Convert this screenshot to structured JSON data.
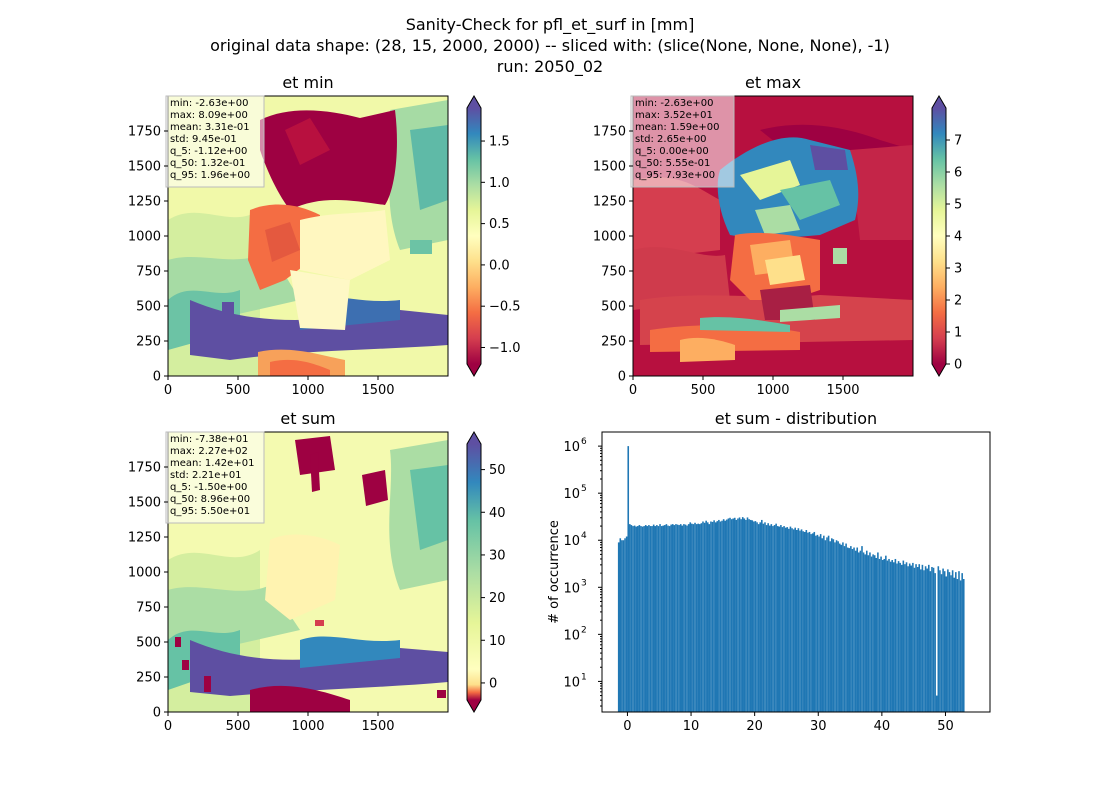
{
  "figure": {
    "suptitle_lines": [
      "Sanity-Check for pfl_et_surf in [mm]",
      "original data shape: (28, 15, 2000, 2000) -- sliced with: (slice(None, None, None), -1)",
      "run: 2050_02"
    ]
  },
  "chart_data": [
    {
      "type": "heatmap",
      "title": "et min",
      "xlabel": "",
      "ylabel": "",
      "xlim": [
        0,
        2000
      ],
      "ylim": [
        0,
        2000
      ],
      "xticks": [
        0,
        500,
        1000,
        1500
      ],
      "yticks": [
        0,
        250,
        500,
        750,
        1000,
        1250,
        1500,
        1750
      ],
      "colormap": "Spectral",
      "colorbar": {
        "vmin": -1.2,
        "vmax": 1.9,
        "ticks": [
          -1.0,
          -0.5,
          0.0,
          0.5,
          1.0,
          1.5
        ],
        "tick_labels": [
          "−1.0",
          "−0.5",
          "0.0",
          "0.5",
          "1.0",
          "1.5"
        ]
      },
      "stats": [
        "min: -2.63e+00",
        "max: 8.09e+00",
        "mean: 3.31e-01",
        "std: 9.45e-01",
        "q_5: -1.12e+00",
        "q_50: 1.32e-01",
        "q_95: 1.96e+00"
      ]
    },
    {
      "type": "heatmap",
      "title": "et max",
      "xlabel": "",
      "ylabel": "",
      "xlim": [
        0,
        2000
      ],
      "ylim": [
        0,
        2000
      ],
      "xticks": [
        0,
        500,
        1000,
        1500
      ],
      "yticks": [
        0,
        250,
        500,
        750,
        1000,
        1250,
        1500,
        1750
      ],
      "colormap": "Spectral",
      "colorbar": {
        "vmin": 0,
        "vmax": 8,
        "ticks": [
          0,
          1,
          2,
          3,
          4,
          5,
          6,
          7
        ],
        "tick_labels": [
          "0",
          "1",
          "2",
          "3",
          "4",
          "5",
          "6",
          "7"
        ]
      },
      "stats": [
        "min: -2.63e+00",
        "max: 3.52e+01",
        "mean: 1.59e+00",
        "std: 2.65e+00",
        "q_5: 0.00e+00",
        "q_50: 5.55e-01",
        "q_95: 7.93e+00"
      ]
    },
    {
      "type": "heatmap",
      "title": "et sum",
      "xlabel": "",
      "ylabel": "",
      "xlim": [
        0,
        2000
      ],
      "ylim": [
        0,
        2000
      ],
      "xticks": [
        0,
        500,
        1000,
        1500
      ],
      "yticks": [
        0,
        250,
        500,
        750,
        1000,
        1250,
        1500,
        1750
      ],
      "colormap": "Spectral",
      "colorbar": {
        "vmin": -4,
        "vmax": 56,
        "ticks": [
          0,
          10,
          20,
          30,
          40,
          50
        ],
        "tick_labels": [
          "0",
          "10",
          "20",
          "30",
          "40",
          "50"
        ]
      },
      "stats": [
        "min: -7.38e+01",
        "max: 2.27e+02",
        "mean: 1.42e+01",
        "std: 2.21e+01",
        "q_5: -1.50e+00",
        "q_50: 8.96e+00",
        "q_95: 5.50e+01"
      ]
    },
    {
      "type": "bar",
      "title": "et sum - distribution",
      "xlabel": "",
      "ylabel": "# of occurrence",
      "xlim": [
        -4,
        57
      ],
      "ylog": true,
      "ylim_log10": [
        0.35,
        6.3
      ],
      "xticks": [
        0,
        10,
        20,
        30,
        40,
        50
      ],
      "yticks_exp": [
        1,
        2,
        3,
        4,
        5,
        6
      ],
      "color": "#1f77b4",
      "bins": {
        "x_start": -1.5,
        "bin_width": 0.25,
        "counts": [
          9000,
          11000,
          10000,
          10000,
          11000,
          12000,
          1000000,
          22000,
          21000,
          20000,
          20500,
          19500,
          20000,
          21000,
          20000,
          19500,
          20000,
          21000,
          20000,
          21000,
          20000,
          20000,
          21500,
          20000,
          21000,
          20000,
          22000,
          20000,
          20500,
          21000,
          22000,
          20500,
          20000,
          21500,
          22000,
          21000,
          22000,
          21500,
          21000,
          22000,
          20500,
          22000,
          21500,
          20500,
          22000,
          24000,
          22500,
          22000,
          23500,
          22000,
          22500,
          22000,
          23000,
          25000,
          23500,
          26000,
          24000,
          22000,
          25000,
          24500,
          26500,
          24000,
          25500,
          27000,
          25000,
          26000,
          28000,
          26000,
          27500,
          29000,
          30000,
          28000,
          29000,
          30000,
          27000,
          29000,
          30500,
          28000,
          31000,
          29000,
          27000,
          30500,
          28000,
          27000,
          26500,
          25000,
          25500,
          24000,
          22000,
          24000,
          27000,
          22500,
          24000,
          21000,
          23000,
          20500,
          22000,
          20000,
          21000,
          22500,
          20000,
          19500,
          21000,
          19000,
          20000,
          18500,
          19000,
          17500,
          19500,
          18000,
          17000,
          18500,
          16500,
          18000,
          16000,
          17000,
          15500,
          15000,
          16500,
          14500,
          15000,
          13500,
          14000,
          15000,
          12500,
          13000,
          12000,
          13500,
          11000,
          12500,
          10000,
          11500,
          12500,
          9500,
          11000,
          10500,
          9000,
          10000,
          9500,
          8500,
          8000,
          9000,
          7500,
          8500,
          7000,
          6800,
          7500,
          6500,
          7000,
          6000,
          7000,
          5500,
          6000,
          7500,
          5500,
          5000,
          6000,
          4800,
          5500,
          4500,
          5000,
          4800,
          4200,
          5500,
          4000,
          4500,
          3800,
          4000,
          4700,
          3700,
          4000,
          3500,
          3800,
          3400,
          4000,
          3200,
          3600,
          3300,
          3000,
          3700,
          3100,
          3400,
          2800,
          3200,
          2900,
          3300,
          2600,
          3100,
          2700,
          3100,
          2400,
          3000,
          2300,
          2800,
          2500,
          3000,
          2200,
          2700,
          2600,
          2000,
          5,
          2800,
          2300,
          1900,
          2500,
          2200,
          1700,
          2400,
          2100,
          1800,
          2300,
          1600,
          2100,
          1500,
          2200,
          1400,
          2000,
          1500
        ]
      }
    }
  ]
}
